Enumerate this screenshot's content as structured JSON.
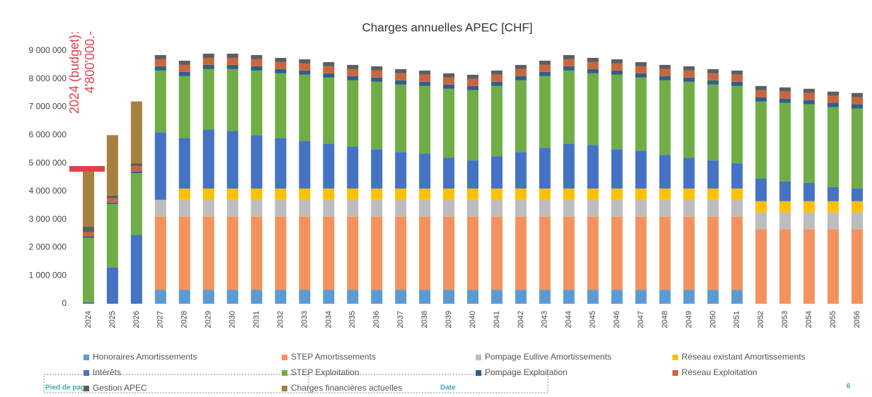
{
  "chart_data": {
    "type": "stacked_bar",
    "title": "Charges annuelles APEC [CHF]",
    "categories": [
      "2024",
      "2025",
      "2026",
      "2027",
      "2028",
      "2029",
      "2030",
      "2031",
      "2032",
      "2033",
      "2034",
      "2035",
      "2036",
      "2037",
      "2038",
      "2039",
      "2040",
      "2041",
      "2042",
      "2043",
      "2044",
      "2045",
      "2046",
      "2047",
      "2048",
      "2049",
      "2050",
      "2051",
      "2052",
      "2053",
      "2054",
      "2055",
      "2056"
    ],
    "ylim": [
      0,
      9000000
    ],
    "yticks": [
      0,
      {
        "value": 1000000,
        "label": "1 000 000"
      },
      {
        "value": 2000000,
        "label": "2 000 000"
      },
      {
        "value": 3000000,
        "label": "3 000 000"
      },
      {
        "value": 4000000,
        "label": "4 000 000"
      },
      {
        "value": 5000000,
        "label": "5 000 000"
      },
      {
        "value": 6000000,
        "label": "6 000 000"
      },
      {
        "value": 7000000,
        "label": "7 000 000"
      },
      {
        "value": 8000000,
        "label": "8 000 000"
      },
      {
        "value": 9000000,
        "label": "9 000 000"
      }
    ],
    "series": [
      {
        "name": "Honoraires Amortissements",
        "color": "#5b9bd5",
        "values": [
          0,
          0,
          0,
          500000,
          500000,
          500000,
          500000,
          500000,
          500000,
          500000,
          500000,
          500000,
          500000,
          500000,
          500000,
          500000,
          500000,
          500000,
          500000,
          500000,
          500000,
          500000,
          500000,
          500000,
          500000,
          500000,
          500000,
          500000,
          0,
          0,
          0,
          0,
          0
        ]
      },
      {
        "name": "STEP Amortissements",
        "color": "#f4925f",
        "values": [
          0,
          0,
          0,
          2600000,
          2600000,
          2600000,
          2600000,
          2600000,
          2600000,
          2600000,
          2600000,
          2600000,
          2600000,
          2600000,
          2600000,
          2600000,
          2600000,
          2600000,
          2600000,
          2600000,
          2600000,
          2600000,
          2600000,
          2600000,
          2600000,
          2600000,
          2600000,
          2600000,
          2650000,
          2650000,
          2650000,
          2650000,
          2650000
        ]
      },
      {
        "name": "Pompage Eullive Amortissements",
        "color": "#bdbdbd",
        "values": [
          0,
          0,
          0,
          600000,
          600000,
          600000,
          600000,
          600000,
          600000,
          600000,
          600000,
          600000,
          600000,
          600000,
          600000,
          600000,
          600000,
          600000,
          600000,
          600000,
          600000,
          600000,
          600000,
          600000,
          600000,
          600000,
          600000,
          600000,
          600000,
          600000,
          600000,
          600000,
          600000
        ]
      },
      {
        "name": "Réseau existant Amortissements",
        "color": "#ffc000",
        "values": [
          0,
          0,
          0,
          0,
          400000,
          400000,
          400000,
          400000,
          400000,
          400000,
          400000,
          400000,
          400000,
          400000,
          400000,
          400000,
          400000,
          400000,
          400000,
          400000,
          400000,
          400000,
          400000,
          400000,
          400000,
          400000,
          400000,
          400000,
          400000,
          400000,
          400000,
          400000,
          400000
        ]
      },
      {
        "name": "Intérêts",
        "color": "#4472c4",
        "values": [
          50000,
          1300000,
          2450000,
          2400000,
          1800000,
          2100000,
          2050000,
          1900000,
          1800000,
          1700000,
          1600000,
          1500000,
          1400000,
          1300000,
          1250000,
          1100000,
          1000000,
          1150000,
          1300000,
          1450000,
          1600000,
          1550000,
          1400000,
          1350000,
          1200000,
          1100000,
          1000000,
          900000,
          800000,
          700000,
          650000,
          500000,
          450000
        ]
      },
      {
        "name": "STEP Exploitation",
        "color": "#70ad47",
        "values": [
          2300000,
          2250000,
          2200000,
          2200000,
          2200000,
          2150000,
          2200000,
          2300000,
          2300000,
          2350000,
          2350000,
          2350000,
          2400000,
          2400000,
          2400000,
          2450000,
          2500000,
          2500000,
          2550000,
          2550000,
          2600000,
          2550000,
          2650000,
          2600000,
          2650000,
          2700000,
          2700000,
          2750000,
          2750000,
          2800000,
          2800000,
          2850000,
          2850000
        ]
      },
      {
        "name": "Pompage Exploitation",
        "color": "#2f5f8a",
        "values": [
          50000,
          50000,
          50000,
          150000,
          150000,
          150000,
          150000,
          150000,
          150000,
          150000,
          150000,
          150000,
          150000,
          150000,
          150000,
          150000,
          150000,
          150000,
          150000,
          150000,
          150000,
          150000,
          150000,
          150000,
          150000,
          150000,
          150000,
          150000,
          150000,
          150000,
          150000,
          150000,
          150000
        ]
      },
      {
        "name": "Réseau Exploitation",
        "color": "#c9663f",
        "values": [
          150000,
          150000,
          200000,
          250000,
          250000,
          250000,
          250000,
          250000,
          250000,
          250000,
          250000,
          250000,
          250000,
          250000,
          250000,
          250000,
          250000,
          250000,
          250000,
          250000,
          250000,
          250000,
          250000,
          250000,
          250000,
          250000,
          250000,
          250000,
          250000,
          250000,
          250000,
          250000,
          250000
        ]
      },
      {
        "name": "Gestion APEC",
        "color": "#5e5e5e",
        "values": [
          200000,
          100000,
          100000,
          150000,
          150000,
          150000,
          150000,
          150000,
          150000,
          150000,
          150000,
          150000,
          150000,
          150000,
          150000,
          150000,
          150000,
          150000,
          150000,
          150000,
          150000,
          150000,
          150000,
          150000,
          150000,
          150000,
          150000,
          150000,
          150000,
          150000,
          150000,
          150000,
          150000
        ]
      },
      {
        "name": "Charges financières actuelles",
        "color": "#a8803e",
        "values": [
          1950000,
          2150000,
          2200000,
          0,
          0,
          0,
          0,
          0,
          0,
          0,
          0,
          0,
          0,
          0,
          0,
          0,
          0,
          0,
          0,
          0,
          0,
          0,
          0,
          0,
          0,
          0,
          0,
          0,
          0,
          0,
          0,
          0,
          0
        ]
      }
    ],
    "annotation": {
      "label": "2024 (budget):",
      "value_label": "4'800'000.-",
      "value": 4800000,
      "color": "#e0404a"
    },
    "footer": {
      "left": "Pied de page",
      "center": "Date",
      "right": "6"
    }
  }
}
